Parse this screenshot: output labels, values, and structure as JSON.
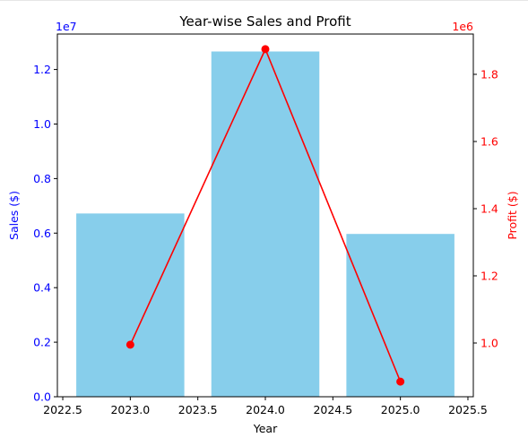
{
  "chart_data": {
    "type": "bar",
    "title": "Year-wise Sales and Profit",
    "xlabel": "Year",
    "x_ticks": [
      2022.5,
      2023.0,
      2023.5,
      2024.0,
      2024.5,
      2025.0,
      2025.5
    ],
    "x_tick_labels": [
      "2022.5",
      "2023.0",
      "2023.5",
      "2024.0",
      "2024.5",
      "2025.0",
      "2025.5"
    ],
    "xlim": [
      2022.46,
      2025.54
    ],
    "bar_width": 0.8,
    "left_axis": {
      "label": "Sales ($)",
      "color": "#0000ff",
      "ylim": [
        0,
        13300000
      ],
      "ticks": [
        0,
        2000000,
        4000000,
        6000000,
        8000000,
        10000000,
        12000000
      ],
      "tick_labels": [
        "0.0",
        "0.2",
        "0.4",
        "0.6",
        "0.8",
        "1.0",
        "1.2"
      ],
      "offset_text": "1e7"
    },
    "right_axis": {
      "label": "Profit ($)",
      "color": "#ff0000",
      "ylim": [
        840000,
        1920000
      ],
      "ticks": [
        1000000,
        1200000,
        1400000,
        1600000,
        1800000
      ],
      "tick_labels": [
        "1.0",
        "1.2",
        "1.4",
        "1.6",
        "1.8"
      ],
      "offset_text": "1e6"
    },
    "series": [
      {
        "type": "bar",
        "axis": "left",
        "color": "#87ceeb",
        "x": [
          2023,
          2024,
          2025
        ],
        "values": [
          6720000,
          12660000,
          5970000
        ]
      },
      {
        "type": "line",
        "axis": "right",
        "color": "#ff0000",
        "marker": "circle",
        "x": [
          2023,
          2024,
          2025
        ],
        "values": [
          995000,
          1875000,
          885000
        ]
      }
    ],
    "grid": false,
    "legend": "none"
  }
}
